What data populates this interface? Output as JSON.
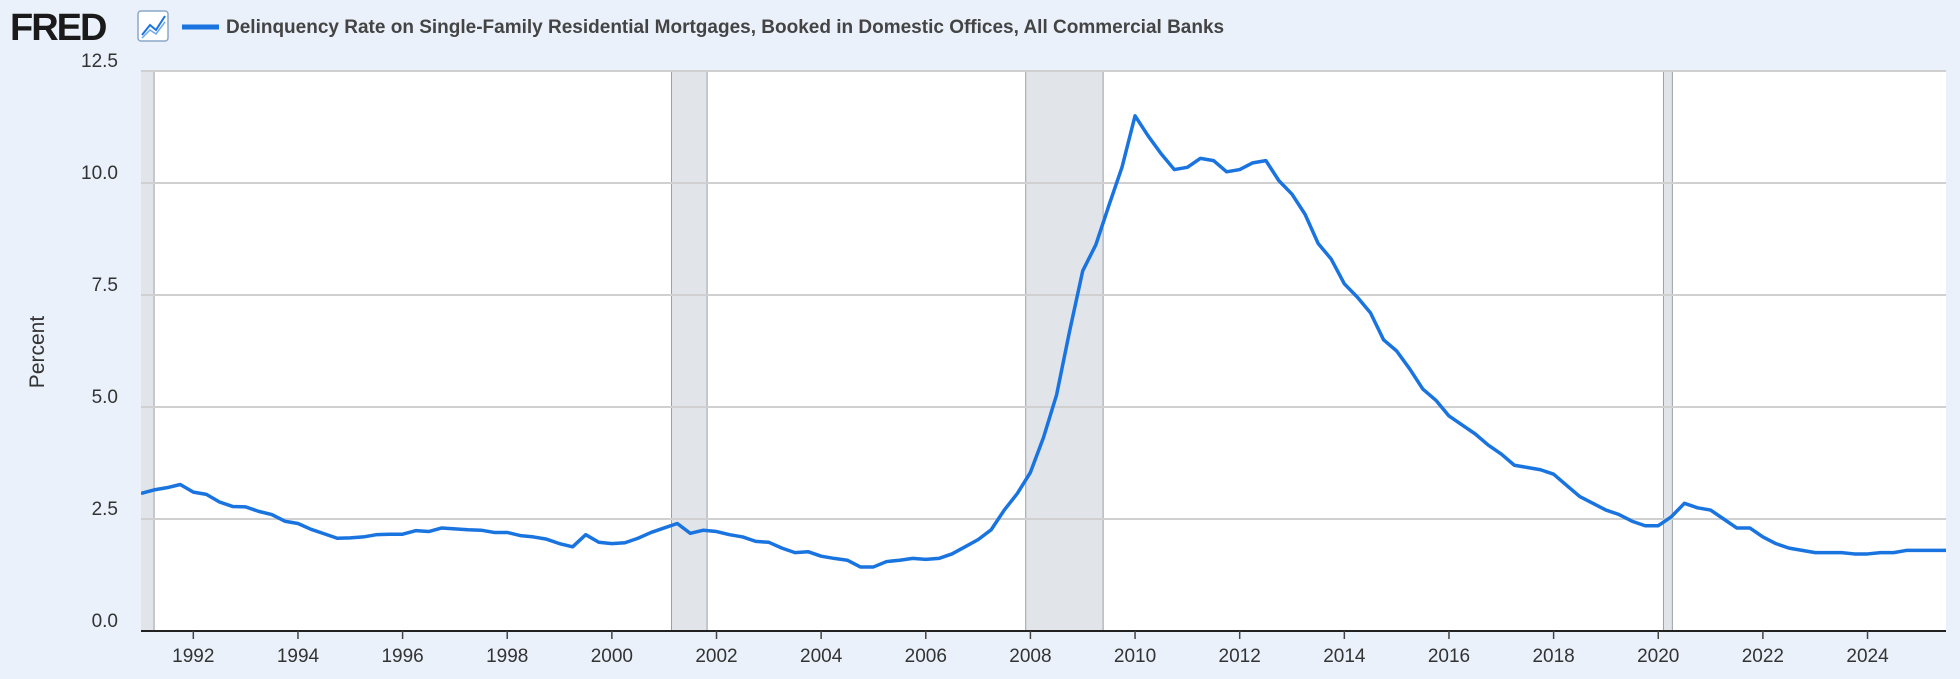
{
  "logo": "FRED",
  "chart_data": {
    "type": "line",
    "y_label": "Percent",
    "xlim": [
      1991,
      2025.5
    ],
    "xticks": [
      1992,
      1994,
      1996,
      1998,
      2000,
      2002,
      2004,
      2006,
      2008,
      2010,
      2012,
      2014,
      2016,
      2018,
      2020,
      2022,
      2024
    ],
    "ylim": [
      0,
      12.5
    ],
    "yticks": [
      {
        "value": 0,
        "label": "0.0"
      },
      2.5,
      {
        "value": 5,
        "label": "5.0"
      },
      7.5,
      {
        "value": 10,
        "label": "10.0"
      },
      12.5
    ],
    "grid": true,
    "recessions": [
      [
        1990.5,
        1991.25
      ],
      [
        2001.14,
        2001.82
      ],
      [
        2007.91,
        2009.39
      ],
      [
        2020.1,
        2020.27
      ]
    ],
    "x": [
      1991,
      1991.25,
      1991.5,
      1991.75,
      1992,
      1992.25,
      1992.5,
      1992.75,
      1993,
      1993.25,
      1993.5,
      1993.75,
      1994,
      1994.25,
      1994.5,
      1994.75,
      1995,
      1995.25,
      1995.5,
      1995.75,
      1996,
      1996.25,
      1996.5,
      1996.75,
      1997,
      1997.25,
      1997.5,
      1997.75,
      1998,
      1998.25,
      1998.5,
      1998.75,
      1999,
      1999.25,
      1999.5,
      1999.75,
      2000,
      2000.25,
      2000.5,
      2000.75,
      2001,
      2001.25,
      2001.5,
      2001.75,
      2002,
      2002.25,
      2002.5,
      2002.75,
      2003,
      2003.25,
      2003.5,
      2003.75,
      2004,
      2004.25,
      2004.5,
      2004.75,
      2005,
      2005.25,
      2005.5,
      2005.75,
      2006,
      2006.25,
      2006.5,
      2006.75,
      2007,
      2007.25,
      2007.5,
      2007.75,
      2008,
      2008.25,
      2008.5,
      2008.75,
      2009,
      2009.25,
      2009.5,
      2009.75,
      2010,
      2010.25,
      2010.5,
      2010.75,
      2011,
      2011.25,
      2011.5,
      2011.75,
      2012,
      2012.25,
      2012.5,
      2012.75,
      2013,
      2013.25,
      2013.5,
      2013.75,
      2014,
      2014.25,
      2014.5,
      2014.75,
      2015,
      2015.25,
      2015.5,
      2015.75,
      2016,
      2016.25,
      2016.5,
      2016.75,
      2017,
      2017.25,
      2017.5,
      2017.75,
      2018,
      2018.25,
      2018.5,
      2018.75,
      2019,
      2019.25,
      2019.5,
      2019.75,
      2020,
      2020.25,
      2020.5,
      2020.75,
      2021,
      2021.25,
      2021.5,
      2021.75,
      2022,
      2022.25,
      2022.5,
      2022.75,
      2023,
      2023.25,
      2023.5,
      2023.75,
      2024,
      2024.25,
      2024.5,
      2024.75,
      2025,
      2025.25,
      2025.5
    ],
    "series": [
      {
        "name": "Delinquency Rate on Single-Family Residential Mortgages, Booked in Domestic Offices, All Commercial Banks",
        "color": "#1a74e0",
        "values": [
          3.07,
          3.15,
          3.2,
          3.27,
          3.1,
          3.05,
          2.88,
          2.78,
          2.77,
          2.67,
          2.6,
          2.45,
          2.4,
          2.27,
          2.17,
          2.07,
          2.08,
          2.1,
          2.15,
          2.16,
          2.16,
          2.24,
          2.22,
          2.3,
          2.28,
          2.26,
          2.25,
          2.2,
          2.2,
          2.13,
          2.1,
          2.05,
          1.95,
          1.88,
          2.15,
          1.98,
          1.95,
          1.97,
          2.07,
          2.2,
          2.3,
          2.4,
          2.18,
          2.25,
          2.22,
          2.15,
          2.1,
          2.0,
          1.98,
          1.85,
          1.75,
          1.77,
          1.67,
          1.62,
          1.58,
          1.43,
          1.43,
          1.55,
          1.58,
          1.62,
          1.6,
          1.62,
          1.72,
          1.88,
          2.04,
          2.26,
          2.7,
          3.07,
          3.54,
          4.32,
          5.27,
          6.7,
          8.04,
          8.62,
          9.5,
          10.35,
          11.5,
          11.05,
          10.65,
          10.3,
          10.35,
          10.55,
          10.5,
          10.25,
          10.3,
          10.45,
          10.5,
          10.05,
          9.75,
          9.3,
          8.65,
          8.3,
          7.75,
          7.45,
          7.1,
          6.5,
          6.25,
          5.85,
          5.4,
          5.15,
          4.8,
          4.6,
          4.4,
          4.15,
          3.95,
          3.7,
          3.65,
          3.6,
          3.5,
          3.25,
          3.0,
          2.85,
          2.7,
          2.6,
          2.45,
          2.35,
          2.35,
          2.55,
          2.85,
          2.75,
          2.7,
          2.5,
          2.3,
          2.3,
          2.1,
          1.95,
          1.85,
          1.8,
          1.75,
          1.75,
          1.75,
          1.72,
          1.72,
          1.75,
          1.75,
          1.8,
          1.8,
          1.8,
          1.8
        ]
      }
    ]
  }
}
